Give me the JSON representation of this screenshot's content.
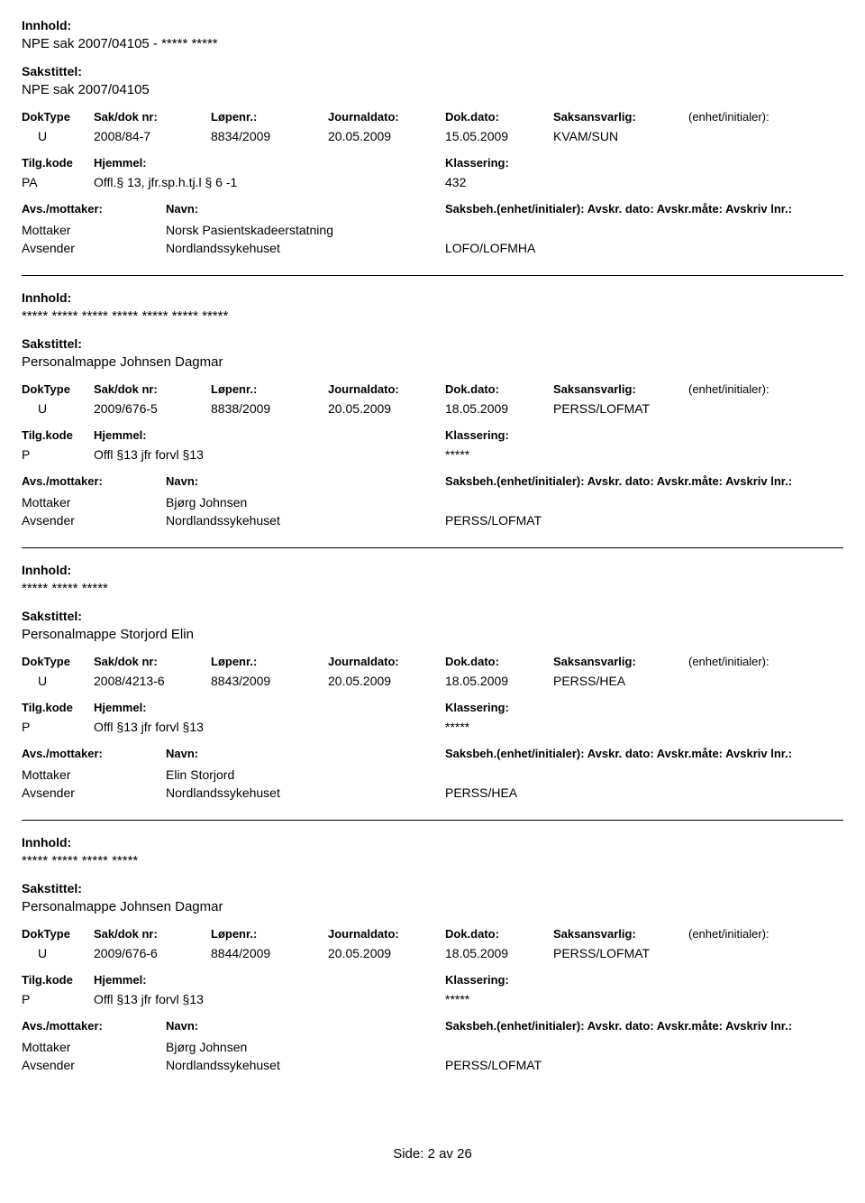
{
  "field_labels": {
    "innhold": "Innhold:",
    "sakstittel": "Sakstittel:",
    "doktype": "DokType",
    "sakdok": "Sak/dok nr:",
    "lopenr": "Løpenr.:",
    "journaldato": "Journaldato:",
    "dokdato": "Dok.dato:",
    "saksansvarlig": "Saksansvarlig:",
    "enhet_initialer": "(enhet/initialer):",
    "tilgkode": "Tilg.kode",
    "hjemmel": "Hjemmel:",
    "klassering": "Klassering:",
    "avs_mottaker": "Avs./mottaker:",
    "navn": "Navn:",
    "saksbeh_line": "Saksbeh.(enhet/initialer): Avskr. dato:  Avskr.måte: Avskriv lnr.:"
  },
  "records": [
    {
      "innhold": "NPE sak 2007/04105 - ***** *****",
      "sakstittel": "NPE sak 2007/04105",
      "doktype": "U",
      "sakdok": "2008/84-7",
      "lopenr": "8834/2009",
      "journaldato": "20.05.2009",
      "dokdato": "15.05.2009",
      "saksansvarlig": "KVAM/SUN",
      "tilgkode": "PA",
      "hjemmel": "Offl.§ 13, jfr.sp.h.tj.l § 6 -1",
      "klassering": "432",
      "parties": [
        {
          "role": "Mottaker",
          "name": "Norsk Pasientskadeerstatning",
          "code": ""
        },
        {
          "role": "Avsender",
          "name": "Nordlandssykehuset",
          "code": "LOFO/LOFMHA"
        }
      ]
    },
    {
      "innhold": "***** ***** ***** ***** ***** ***** *****",
      "sakstittel": "Personalmappe Johnsen Dagmar",
      "doktype": "U",
      "sakdok": "2009/676-5",
      "lopenr": "8838/2009",
      "journaldato": "20.05.2009",
      "dokdato": "18.05.2009",
      "saksansvarlig": "PERSS/LOFMAT",
      "tilgkode": "P",
      "hjemmel": "Offl §13 jfr forvl §13",
      "klassering": "*****",
      "parties": [
        {
          "role": "Mottaker",
          "name": "Bjørg Johnsen",
          "code": ""
        },
        {
          "role": "Avsender",
          "name": "Nordlandssykehuset",
          "code": "PERSS/LOFMAT"
        }
      ]
    },
    {
      "innhold": "***** ***** *****",
      "sakstittel": "Personalmappe Storjord Elin",
      "doktype": "U",
      "sakdok": "2008/4213-6",
      "lopenr": "8843/2009",
      "journaldato": "20.05.2009",
      "dokdato": "18.05.2009",
      "saksansvarlig": "PERSS/HEA",
      "tilgkode": "P",
      "hjemmel": "Offl §13 jfr forvl §13",
      "klassering": "*****",
      "parties": [
        {
          "role": "Mottaker",
          "name": "Elin Storjord",
          "code": ""
        },
        {
          "role": "Avsender",
          "name": "Nordlandssykehuset",
          "code": "PERSS/HEA"
        }
      ]
    },
    {
      "innhold": "***** ***** ***** *****",
      "sakstittel": "Personalmappe Johnsen Dagmar",
      "doktype": "U",
      "sakdok": "2009/676-6",
      "lopenr": "8844/2009",
      "journaldato": "20.05.2009",
      "dokdato": "18.05.2009",
      "saksansvarlig": "PERSS/LOFMAT",
      "tilgkode": "P",
      "hjemmel": "Offl §13 jfr forvl §13",
      "klassering": "*****",
      "parties": [
        {
          "role": "Mottaker",
          "name": "Bjørg Johnsen",
          "code": ""
        },
        {
          "role": "Avsender",
          "name": "Nordlandssykehuset",
          "code": "PERSS/LOFMAT"
        }
      ]
    }
  ],
  "footer": {
    "text": "Side:  2  av  26"
  }
}
